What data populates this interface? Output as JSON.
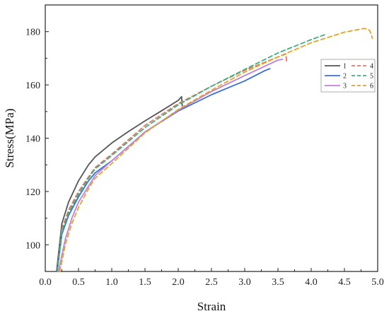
{
  "chart_data": {
    "type": "line",
    "title": "",
    "xlabel": "Strain",
    "ylabel": "Stress(MPa)",
    "xlim": [
      0.0,
      5.0
    ],
    "ylim": [
      90,
      190
    ],
    "xticks": [
      0.0,
      0.5,
      1.0,
      1.5,
      2.0,
      2.5,
      3.0,
      3.5,
      4.0,
      4.5,
      5.0
    ],
    "xtick_labels": [
      "0.0",
      "0.5",
      "1.0",
      "1.5",
      "2.0",
      "2.5",
      "3.0",
      "3.5",
      "4.0",
      "4.5",
      "5.0"
    ],
    "yticks": [
      100,
      120,
      140,
      160,
      180
    ],
    "ytick_labels": [
      "100",
      "120",
      "140",
      "160",
      "180"
    ],
    "grid": false,
    "legend_position": "right",
    "series": [
      {
        "name": "1",
        "color": "#555555",
        "dash": "solid",
        "x": [
          0.17,
          0.25,
          0.35,
          0.5,
          0.65,
          0.75,
          1.0,
          1.25,
          1.5,
          1.75,
          2.0,
          2.05,
          2.06
        ],
        "y": [
          90,
          108,
          116,
          124,
          130,
          133,
          138.2,
          142.5,
          146.5,
          150.3,
          154.2,
          155.6,
          152.2
        ]
      },
      {
        "name": "2",
        "color": "#3a6fd1",
        "dash": "solid",
        "x": [
          0.18,
          0.25,
          0.35,
          0.5,
          0.65,
          0.75,
          1.0,
          1.5,
          2.0,
          2.5,
          3.0,
          3.3,
          3.38
        ],
        "y": [
          90,
          104,
          111,
          118,
          124,
          127,
          131.5,
          142.3,
          150.2,
          156.3,
          161.5,
          165.3,
          166.1
        ]
      },
      {
        "name": "3",
        "color": "#c27fd8",
        "dash": "solid",
        "x": [
          0.2,
          0.3,
          0.4,
          0.5,
          0.65,
          0.75,
          1.0,
          1.5,
          2.0,
          2.5,
          3.0,
          3.5,
          3.57
        ],
        "y": [
          90,
          102,
          110,
          116,
          122,
          126,
          131.5,
          142.3,
          150.5,
          157.5,
          163.5,
          169.3,
          169.6
        ]
      },
      {
        "name": "4",
        "color": "#e07a66",
        "dash": "dashed",
        "x": [
          0.18,
          0.25,
          0.35,
          0.5,
          0.65,
          0.75,
          1.0,
          1.5,
          2.0,
          2.5,
          3.0,
          3.5,
          3.62,
          3.63
        ],
        "y": [
          90,
          106,
          113,
          120,
          125.5,
          129,
          134,
          144.8,
          153,
          159.5,
          165.5,
          170.5,
          171.6,
          168
        ]
      },
      {
        "name": "5",
        "color": "#3fb07e",
        "dash": "dashed",
        "x": [
          0.18,
          0.25,
          0.35,
          0.5,
          0.65,
          0.75,
          1.0,
          1.5,
          2.0,
          2.5,
          3.0,
          3.5,
          4.0,
          4.2
        ],
        "y": [
          90,
          105,
          112,
          119,
          125,
          128.5,
          133.5,
          144,
          152.5,
          159.5,
          165.8,
          172,
          177,
          178.8
        ]
      },
      {
        "name": "6",
        "color": "#e0a52a",
        "dash": "dashed",
        "x": [
          0.22,
          0.3,
          0.4,
          0.5,
          0.65,
          0.75,
          1.0,
          1.5,
          2.0,
          2.5,
          3.0,
          3.5,
          4.0,
          4.5,
          4.8,
          4.88,
          4.92
        ],
        "y": [
          90,
          100,
          108,
          114,
          121,
          125,
          130.5,
          142,
          150.8,
          158,
          164.8,
          170.5,
          175.8,
          179.8,
          181.2,
          180.5,
          177.5
        ]
      }
    ]
  }
}
